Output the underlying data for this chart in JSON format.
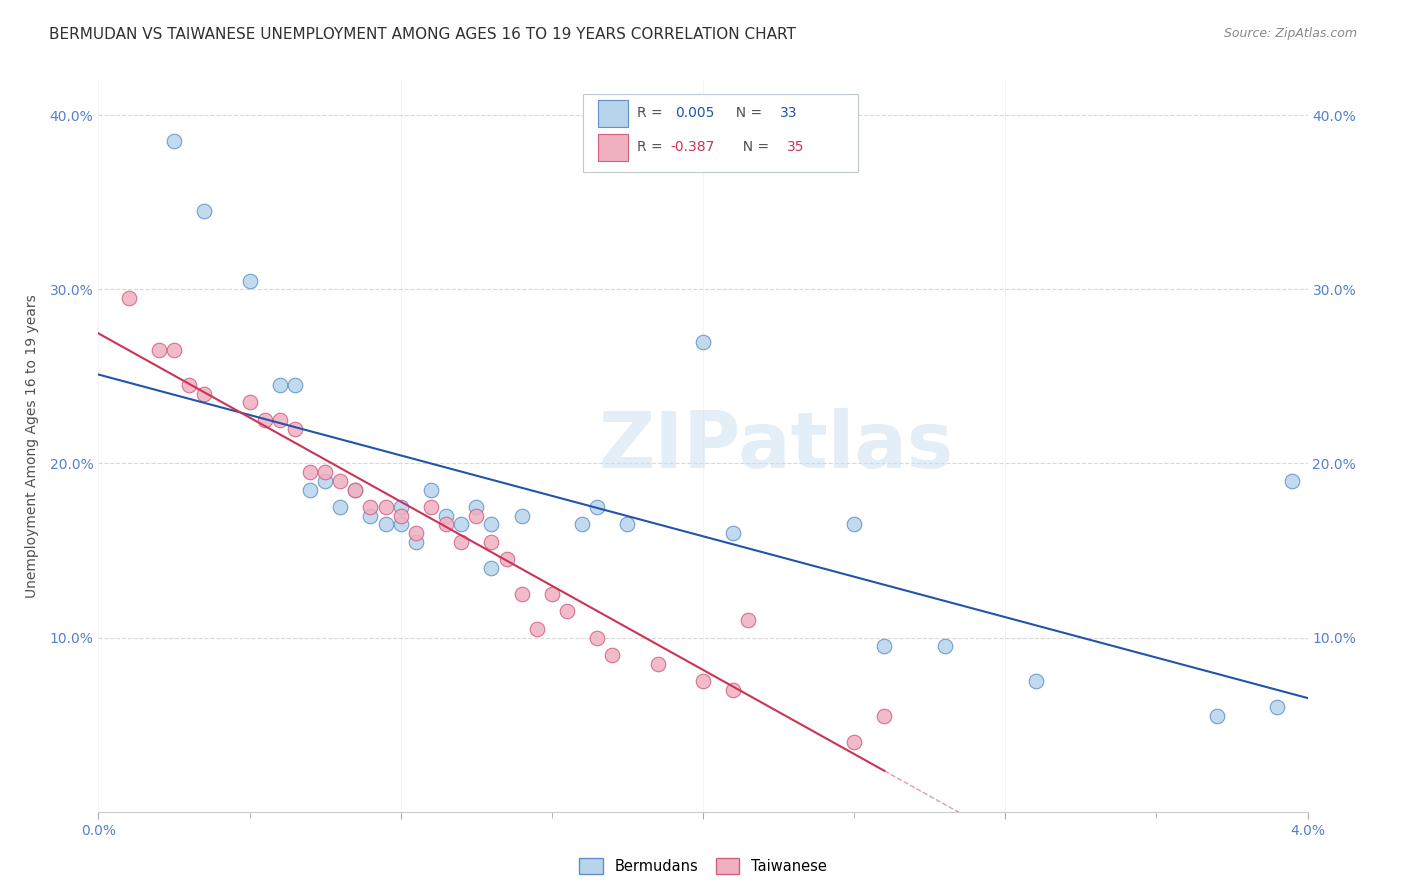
{
  "title": "BERMUDAN VS TAIWANESE UNEMPLOYMENT AMONG AGES 16 TO 19 YEARS CORRELATION CHART",
  "source": "Source: ZipAtlas.com",
  "ylabel": "Unemployment Among Ages 16 to 19 years",
  "watermark": "ZIPatlas",
  "bermudans": {
    "color": "#b8d4eb",
    "edge_color": "#6090c8",
    "line_color": "#2255aa",
    "x": [
      0.0025,
      0.0035,
      0.005,
      0.006,
      0.0065,
      0.007,
      0.0075,
      0.008,
      0.0085,
      0.009,
      0.0095,
      0.01,
      0.01,
      0.0105,
      0.011,
      0.0115,
      0.012,
      0.0125,
      0.013,
      0.013,
      0.014,
      0.016,
      0.0165,
      0.0175,
      0.02,
      0.021,
      0.025,
      0.026,
      0.028,
      0.031,
      0.037,
      0.039,
      0.0395
    ],
    "y": [
      0.385,
      0.345,
      0.305,
      0.245,
      0.245,
      0.185,
      0.19,
      0.175,
      0.185,
      0.17,
      0.165,
      0.175,
      0.165,
      0.155,
      0.185,
      0.17,
      0.165,
      0.175,
      0.165,
      0.14,
      0.17,
      0.165,
      0.175,
      0.165,
      0.27,
      0.16,
      0.165,
      0.095,
      0.095,
      0.075,
      0.055,
      0.06,
      0.19
    ]
  },
  "taiwanese": {
    "color": "#f0b0c0",
    "edge_color": "#d06080",
    "line_color": "#cc3355",
    "x": [
      0.001,
      0.002,
      0.0025,
      0.003,
      0.0035,
      0.005,
      0.0055,
      0.006,
      0.0065,
      0.007,
      0.0075,
      0.008,
      0.0085,
      0.009,
      0.0095,
      0.01,
      0.0105,
      0.011,
      0.0115,
      0.012,
      0.0125,
      0.013,
      0.0135,
      0.014,
      0.0145,
      0.015,
      0.0155,
      0.0165,
      0.017,
      0.0185,
      0.02,
      0.021,
      0.0215,
      0.025,
      0.026
    ],
    "y": [
      0.295,
      0.265,
      0.265,
      0.245,
      0.24,
      0.235,
      0.225,
      0.225,
      0.22,
      0.195,
      0.195,
      0.19,
      0.185,
      0.175,
      0.175,
      0.17,
      0.16,
      0.175,
      0.165,
      0.155,
      0.17,
      0.155,
      0.145,
      0.125,
      0.105,
      0.125,
      0.115,
      0.1,
      0.09,
      0.085,
      0.075,
      0.07,
      0.11,
      0.04,
      0.055
    ]
  },
  "xlim": [
    0.0,
    0.04
  ],
  "ylim": [
    0.0,
    0.42
  ],
  "xticks": [
    0.0,
    0.01,
    0.02,
    0.03,
    0.04
  ],
  "yticks": [
    0.0,
    0.1,
    0.2,
    0.3,
    0.4
  ],
  "grid_color": "#d8d8d8",
  "bg_color": "#ffffff",
  "title_fontsize": 11,
  "axis_label_fontsize": 10,
  "tick_fontsize": 10,
  "tick_color": "#5580cc",
  "marker_size": 110
}
